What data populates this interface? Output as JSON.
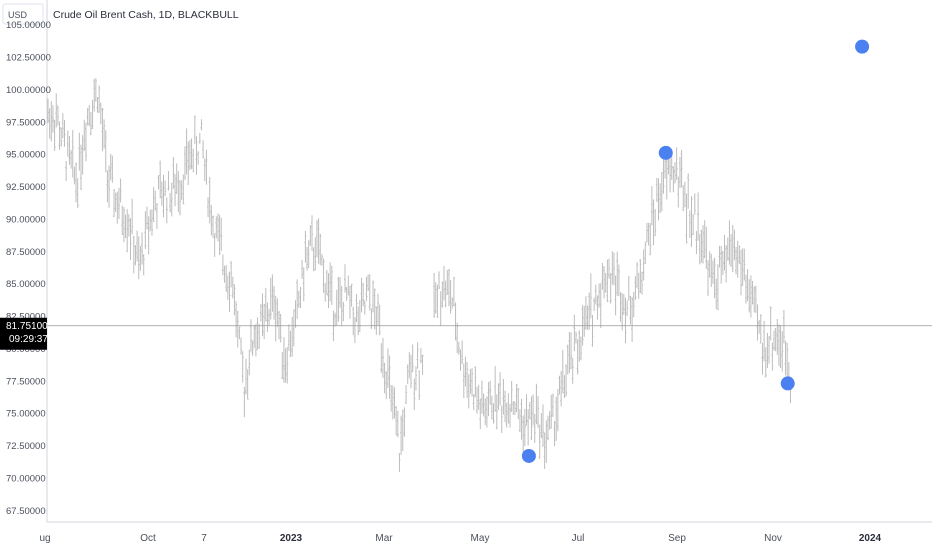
{
  "chart_data": {
    "type": "ohlc",
    "title": "Crude Oil Brent Cash, 1D, BLACKBULL",
    "currency": "USD",
    "current_price": "81.75100",
    "countdown": "09:29:37",
    "y_ticks": [
      "105.00000",
      "102.50000",
      "100.00000",
      "97.50000",
      "95.00000",
      "92.50000",
      "90.00000",
      "87.50000",
      "85.00000",
      "82.50000",
      "80.00000",
      "77.50000",
      "75.00000",
      "72.50000",
      "70.00000",
      "67.50000"
    ],
    "x_ticks": [
      {
        "label": "ug",
        "bold": false
      },
      {
        "label": "Oct",
        "bold": false
      },
      {
        "label": "7",
        "bold": false
      },
      {
        "label": "2023",
        "bold": true
      },
      {
        "label": "Mar",
        "bold": false
      },
      {
        "label": "May",
        "bold": false
      },
      {
        "label": "Jul",
        "bold": false
      },
      {
        "label": "Sep",
        "bold": false
      },
      {
        "label": "Nov",
        "bold": false
      },
      {
        "label": "2024",
        "bold": true
      }
    ],
    "price_path": [
      {
        "x": "2022-08-01",
        "y": 98
      },
      {
        "x": "2022-08-08",
        "y": 95
      },
      {
        "x": "2022-08-15",
        "y": 93
      },
      {
        "x": "2022-08-22",
        "y": 98
      },
      {
        "x": "2022-08-29",
        "y": 100
      },
      {
        "x": "2022-09-05",
        "y": 93
      },
      {
        "x": "2022-09-12",
        "y": 91
      },
      {
        "x": "2022-09-19",
        "y": 90
      },
      {
        "x": "2022-09-26",
        "y": 86
      },
      {
        "x": "2022-10-03",
        "y": 90
      },
      {
        "x": "2022-10-10",
        "y": 92
      },
      {
        "x": "2022-10-17",
        "y": 92
      },
      {
        "x": "2022-10-24",
        "y": 93
      },
      {
        "x": "2022-10-31",
        "y": 95
      },
      {
        "x": "2022-11-07",
        "y": 96
      },
      {
        "x": "2022-11-14",
        "y": 90
      },
      {
        "x": "2022-11-21",
        "y": 87
      },
      {
        "x": "2022-11-28",
        "y": 85
      },
      {
        "x": "2022-12-05",
        "y": 77
      },
      {
        "x": "2022-12-12",
        "y": 81
      },
      {
        "x": "2022-12-19",
        "y": 82
      },
      {
        "x": "2022-12-26",
        "y": 84
      },
      {
        "x": "2023-01-02",
        "y": 79
      },
      {
        "x": "2023-01-09",
        "y": 82
      },
      {
        "x": "2023-01-16",
        "y": 87
      },
      {
        "x": "2023-01-23",
        "y": 88
      },
      {
        "x": "2023-01-30",
        "y": 85
      },
      {
        "x": "2023-02-06",
        "y": 83
      },
      {
        "x": "2023-02-13",
        "y": 84
      },
      {
        "x": "2023-02-20",
        "y": 82
      },
      {
        "x": "2023-02-27",
        "y": 84
      },
      {
        "x": "2023-03-06",
        "y": 82
      },
      {
        "x": "2023-03-13",
        "y": 77
      },
      {
        "x": "2023-03-20",
        "y": 72
      },
      {
        "x": "2023-03-27",
        "y": 78
      },
      {
        "x": "2023-04-03",
        "y": 79
      },
      {
        "x": "2023-04-17",
        "y": 85
      },
      {
        "x": "2023-04-24",
        "y": 84
      },
      {
        "x": "2023-05-01",
        "y": 79
      },
      {
        "x": "2023-05-08",
        "y": 77
      },
      {
        "x": "2023-05-15",
        "y": 75
      },
      {
        "x": "2023-05-22",
        "y": 76
      },
      {
        "x": "2023-05-29",
        "y": 76
      },
      {
        "x": "2023-06-05",
        "y": 76
      },
      {
        "x": "2023-06-12",
        "y": 74
      },
      {
        "x": "2023-06-19",
        "y": 75
      },
      {
        "x": "2023-06-26",
        "y": 73
      },
      {
        "x": "2023-07-03",
        "y": 75
      },
      {
        "x": "2023-07-10",
        "y": 78
      },
      {
        "x": "2023-07-17",
        "y": 80
      },
      {
        "x": "2023-07-24",
        "y": 82
      },
      {
        "x": "2023-07-31",
        "y": 84
      },
      {
        "x": "2023-08-07",
        "y": 86
      },
      {
        "x": "2023-08-14",
        "y": 85
      },
      {
        "x": "2023-08-21",
        "y": 83
      },
      {
        "x": "2023-08-28",
        "y": 85
      },
      {
        "x": "2023-09-04",
        "y": 89
      },
      {
        "x": "2023-09-11",
        "y": 92
      },
      {
        "x": "2023-09-18",
        "y": 94
      },
      {
        "x": "2023-09-25",
        "y": 93
      },
      {
        "x": "2023-10-02",
        "y": 90
      },
      {
        "x": "2023-10-09",
        "y": 89
      },
      {
        "x": "2023-10-16",
        "y": 85
      },
      {
        "x": "2023-10-23",
        "y": 86
      },
      {
        "x": "2023-10-30",
        "y": 88
      },
      {
        "x": "2023-11-06",
        "y": 86
      },
      {
        "x": "2023-11-13",
        "y": 83
      },
      {
        "x": "2023-11-20",
        "y": 80
      },
      {
        "x": "2023-11-27",
        "y": 81
      },
      {
        "x": "2023-12-04",
        "y": 80
      },
      {
        "x": "2023-12-08",
        "y": 78
      }
    ],
    "markers": [
      {
        "date": "2023-06-15",
        "y": 71.7
      },
      {
        "date": "2023-09-15",
        "y": 95.1
      },
      {
        "date": "2023-12-06",
        "y": 77.3
      },
      {
        "date": "2024-01-25",
        "y": 103.3
      }
    ],
    "y_range": [
      66.6,
      106.9
    ],
    "x_range": [
      "2022-07-26",
      "2024-03-12"
    ],
    "colors": {
      "bars": "#bcbcbc",
      "marker": "#4a80f0",
      "crosshair": "#9598a1",
      "price_label_bg": "#000000"
    }
  }
}
